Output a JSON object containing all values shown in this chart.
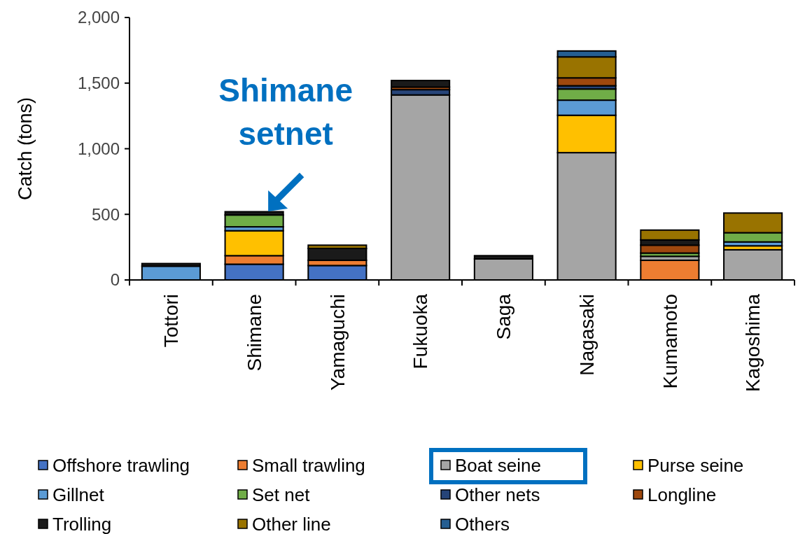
{
  "chart_data": {
    "type": "bar",
    "stacked": true,
    "ylabel": "Catch (tons)",
    "categories": [
      "Tottori",
      "Shimane",
      "Yamaguchi",
      "Fukuoka",
      "Saga",
      "Nagasaki",
      "Kumamoto",
      "Kagoshima"
    ],
    "series": [
      {
        "name": "Offshore trawling",
        "color": "#4472c4",
        "values": [
          0,
          120,
          110,
          0,
          0,
          0,
          0,
          0
        ]
      },
      {
        "name": "Small  trawling",
        "color": "#ed7d31",
        "values": [
          0,
          65,
          40,
          0,
          0,
          0,
          150,
          0
        ]
      },
      {
        "name": "Boat seine",
        "color": "#a5a5a5",
        "values": [
          0,
          0,
          0,
          1410,
          160,
          970,
          30,
          230
        ]
      },
      {
        "name": "Purse seine",
        "color": "#ffc000",
        "values": [
          0,
          190,
          0,
          0,
          0,
          285,
          0,
          30
        ]
      },
      {
        "name": "Gillnet",
        "color": "#5b9bd5",
        "values": [
          105,
          30,
          0,
          0,
          0,
          115,
          0,
          30
        ]
      },
      {
        "name": "Set net",
        "color": "#70ad47",
        "values": [
          0,
          90,
          0,
          0,
          0,
          85,
          25,
          70
        ]
      },
      {
        "name": "Other nets",
        "color": "#264478",
        "values": [
          0,
          0,
          0,
          40,
          0,
          25,
          0,
          0
        ]
      },
      {
        "name": "Longline",
        "color": "#9e480e",
        "values": [
          0,
          0,
          0,
          20,
          0,
          60,
          60,
          0
        ]
      },
      {
        "name": "Trolling",
        "color": "#1a1a1a",
        "values": [
          20,
          25,
          90,
          50,
          25,
          0,
          40,
          0
        ]
      },
      {
        "name": "Other line",
        "color": "#997300",
        "values": [
          0,
          0,
          25,
          0,
          0,
          160,
          75,
          150
        ]
      },
      {
        "name": "Others",
        "color": "#255e91",
        "values": [
          0,
          0,
          0,
          0,
          0,
          45,
          0,
          0
        ]
      }
    ],
    "ylim": [
      0,
      2000
    ],
    "yticks": [
      {
        "value": 0,
        "label": "0"
      },
      {
        "value": 500,
        "label": "500"
      },
      {
        "value": 1000,
        "label": "1,000"
      },
      {
        "value": 1500,
        "label": "1,500"
      },
      {
        "value": 2000,
        "label": "2,000"
      }
    ],
    "grid": false,
    "legend": "bottom",
    "annotations": [
      {
        "text": "Shimane\nsetnet",
        "x": "Shimane",
        "y": 480
      }
    ]
  }
}
